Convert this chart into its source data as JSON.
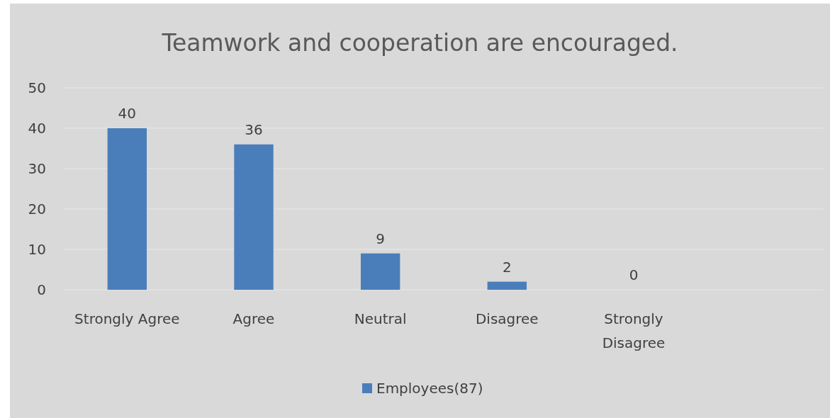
{
  "chart_data": {
    "type": "bar",
    "title": "Teamwork and cooperation are encouraged.",
    "categories": [
      "Strongly Agree",
      "Agree",
      "Neutral",
      "Disagree",
      "Strongly Disagree",
      null
    ],
    "series": [
      {
        "name": "Employees(87)",
        "color": "#4a7ebb",
        "values": [
          40,
          36,
          9,
          2,
          0,
          null
        ]
      }
    ],
    "ylim": [
      0,
      50
    ],
    "yticks": [
      0,
      10,
      20,
      30,
      40,
      50
    ],
    "grid": "y",
    "legend": "bottom",
    "data_labels": true
  }
}
